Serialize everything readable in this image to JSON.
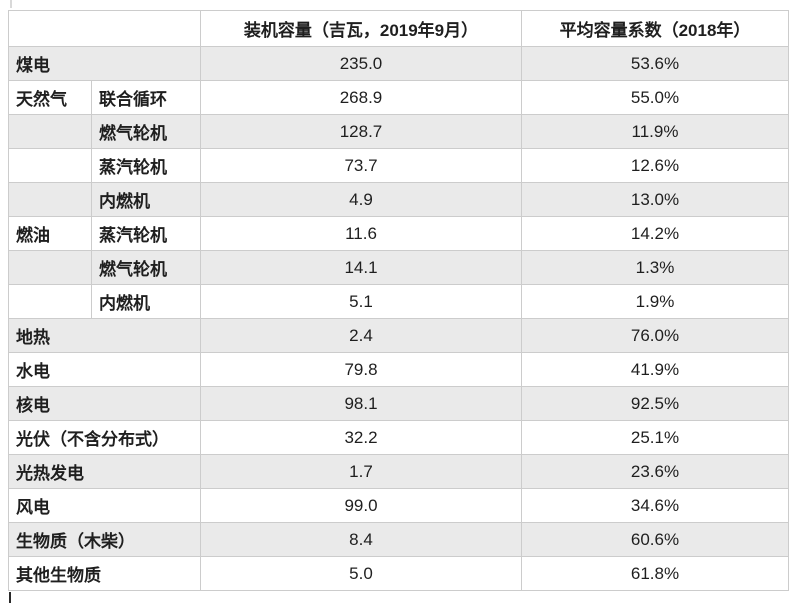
{
  "chart_data": {
    "type": "table",
    "header": {
      "capacity": "装机容量（吉瓦，2019年9月）",
      "factor": "平均容量系数（2018年）"
    },
    "rows": [
      {
        "category": "煤电",
        "subcategory": null,
        "capacity": "235.0",
        "factor": "53.6%"
      },
      {
        "category": "天然气",
        "subcategory": "联合循环",
        "capacity": "268.9",
        "factor": "55.0%"
      },
      {
        "category": "",
        "subcategory": "燃气轮机",
        "capacity": "128.7",
        "factor": "11.9%"
      },
      {
        "category": "",
        "subcategory": "蒸汽轮机",
        "capacity": "73.7",
        "factor": "12.6%"
      },
      {
        "category": "",
        "subcategory": "内燃机",
        "capacity": "4.9",
        "factor": "13.0%"
      },
      {
        "category": "燃油",
        "subcategory": "蒸汽轮机",
        "capacity": "11.6",
        "factor": "14.2%"
      },
      {
        "category": "",
        "subcategory": "燃气轮机",
        "capacity": "14.1",
        "factor": "1.3%"
      },
      {
        "category": "",
        "subcategory": "内燃机",
        "capacity": "5.1",
        "factor": "1.9%"
      },
      {
        "category": "地热",
        "subcategory": null,
        "capacity": "2.4",
        "factor": "76.0%"
      },
      {
        "category": "水电",
        "subcategory": null,
        "capacity": "79.8",
        "factor": "41.9%"
      },
      {
        "category": "核电",
        "subcategory": null,
        "capacity": "98.1",
        "factor": "92.5%"
      },
      {
        "category": "光伏（不含分布式）",
        "subcategory": null,
        "capacity": "32.2",
        "factor": "25.1%"
      },
      {
        "category": "光热发电",
        "subcategory": null,
        "capacity": "1.7",
        "factor": "23.6%"
      },
      {
        "category": "风电",
        "subcategory": null,
        "capacity": "99.0",
        "factor": "34.6%"
      },
      {
        "category": "生物质（木柴）",
        "subcategory": null,
        "capacity": "8.4",
        "factor": "60.6%"
      },
      {
        "category": "其他生物质",
        "subcategory": null,
        "capacity": "5.0",
        "factor": "61.8%"
      }
    ],
    "layout": {
      "row_alt_color": "#eaeaea",
      "row_base_color": "#ffffff",
      "border_color": "#cccccc",
      "text_color": "#1f1f1f"
    }
  }
}
